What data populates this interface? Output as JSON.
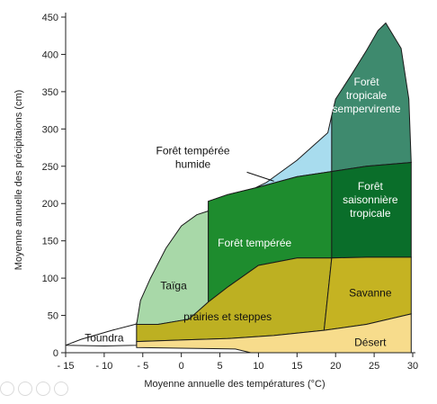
{
  "chart_data": {
    "type": "diagram",
    "title": "",
    "xlabel": "Moyenne annuelle des températures (°C)",
    "ylabel": "Moyenne annuelle des précipitaions (cm)",
    "xlim": [
      -15,
      30
    ],
    "ylim": [
      0,
      450
    ],
    "x_ticks": [
      "- 15",
      "- 10",
      "- 5",
      "0",
      "5",
      "10",
      "15",
      "20",
      "25",
      "30"
    ],
    "x_tick_values": [
      -15,
      -10,
      -5,
      0,
      5,
      10,
      15,
      20,
      25,
      30
    ],
    "y_ticks": [
      "0",
      "50",
      "100",
      "150",
      "200",
      "250",
      "300",
      "350",
      "400",
      "450"
    ],
    "y_tick_values": [
      0,
      50,
      100,
      150,
      200,
      250,
      300,
      350,
      400,
      450
    ],
    "regions": [
      {
        "id": "toundra",
        "color": "#ffffff",
        "text_color": "#111111",
        "label_lines": [
          "Toundra"
        ],
        "label_at": [
          -10,
          20
        ],
        "polygon": [
          [
            -15,
            10
          ],
          [
            -13,
            18
          ],
          [
            -9,
            30
          ],
          [
            -6,
            38
          ],
          [
            -3,
            48
          ],
          [
            -1,
            62
          ],
          [
            1,
            88
          ],
          [
            2,
            120
          ],
          [
            3,
            170
          ],
          [
            3.5,
            190
          ],
          [
            -5.8,
            40
          ],
          [
            -5.8,
            10
          ],
          [
            -10,
            9
          ]
        ]
      },
      {
        "id": "taiga",
        "color": "#a8d8a8",
        "text_color": "#111111",
        "label_lines": [
          "Taïga"
        ],
        "label_at": [
          -1,
          90
        ],
        "polygon": [
          [
            -5.8,
            38
          ],
          [
            -5.3,
            70
          ],
          [
            -4,
            100
          ],
          [
            -2,
            140
          ],
          [
            0,
            170
          ],
          [
            2,
            185
          ],
          [
            3.5,
            190
          ],
          [
            3.5,
            68
          ],
          [
            1,
            45
          ],
          [
            -3,
            38
          ]
        ]
      },
      {
        "id": "foret-temperee-humide",
        "color": "#a8dcee",
        "text_color": "#111111",
        "label_lines": [
          "Forêt tempérée",
          "humide"
        ],
        "label_at": [
          1.5,
          262
        ],
        "callout": [
          [
            8.5,
            242
          ],
          [
            12,
            230
          ]
        ],
        "polygon": [
          [
            3.5,
            190
          ],
          [
            7,
            208
          ],
          [
            11,
            228
          ],
          [
            15,
            258
          ],
          [
            19,
            295
          ],
          [
            19.5,
            318
          ],
          [
            19.5,
            243
          ],
          [
            15,
            236
          ],
          [
            10,
            222
          ],
          [
            6,
            212
          ],
          [
            3.5,
            203
          ]
        ]
      },
      {
        "id": "foret-temperee",
        "color": "#1e8c2e",
        "text_color": "#ffffff",
        "label_lines": [
          "Forêt tempérée"
        ],
        "label_at": [
          9.5,
          147
        ],
        "polygon": [
          [
            3.5,
            203
          ],
          [
            6,
            212
          ],
          [
            10,
            222
          ],
          [
            15,
            236
          ],
          [
            19.5,
            243
          ],
          [
            19.5,
            127
          ],
          [
            15,
            127
          ],
          [
            10,
            117
          ],
          [
            6,
            88
          ],
          [
            3.5,
            68
          ]
        ]
      },
      {
        "id": "prairies-et-steppes",
        "color": "#bdb022",
        "text_color": "#111111",
        "label_lines": [
          "prairies et steppes"
        ],
        "label_at": [
          6,
          48
        ],
        "polygon": [
          [
            -5.8,
            15
          ],
          [
            -5.8,
            38
          ],
          [
            -3,
            38
          ],
          [
            1,
            45
          ],
          [
            3.5,
            68
          ],
          [
            6,
            88
          ],
          [
            10,
            117
          ],
          [
            15,
            127
          ],
          [
            19.5,
            127
          ],
          [
            18.5,
            30
          ],
          [
            12,
            23
          ],
          [
            6,
            19
          ],
          [
            0,
            17
          ]
        ]
      },
      {
        "id": "foret-tropicale-sempervirente",
        "color": "#3e8a6e",
        "text_color": "#ffffff",
        "label_lines": [
          "Forêt",
          "tropicale",
          "sempervirente"
        ],
        "label_at": [
          24,
          345
        ],
        "polygon": [
          [
            19.5,
            318
          ],
          [
            20,
            340
          ],
          [
            22,
            372
          ],
          [
            24,
            405
          ],
          [
            25.5,
            432
          ],
          [
            26.5,
            442
          ],
          [
            28.5,
            408
          ],
          [
            29.5,
            340
          ],
          [
            29.8,
            255
          ],
          [
            24,
            250
          ],
          [
            19.5,
            243
          ]
        ]
      },
      {
        "id": "foret-saisonniere-tropicale",
        "color": "#0a6e2a",
        "text_color": "#ffffff",
        "label_lines": [
          "Forêt",
          "saisonnière",
          "tropicale"
        ],
        "label_at": [
          24.5,
          205
        ],
        "polygon": [
          [
            19.5,
            243
          ],
          [
            24,
            250
          ],
          [
            29.8,
            255
          ],
          [
            29.8,
            128
          ],
          [
            24,
            128
          ],
          [
            19.5,
            127
          ]
        ]
      },
      {
        "id": "savanne",
        "color": "#c5b322",
        "text_color": "#111111",
        "label_lines": [
          "Savanne"
        ],
        "label_at": [
          24.5,
          80
        ],
        "polygon": [
          [
            19.5,
            127
          ],
          [
            24,
            128
          ],
          [
            29.8,
            128
          ],
          [
            29.8,
            52
          ],
          [
            24,
            38
          ],
          [
            18.5,
            30
          ]
        ]
      },
      {
        "id": "desert",
        "color": "#f7dc8c",
        "text_color": "#111111",
        "label_lines": [
          "Désert"
        ],
        "label_at": [
          24.5,
          14
        ],
        "polygon": [
          [
            -5.8,
            7
          ],
          [
            -5.8,
            15
          ],
          [
            0,
            17
          ],
          [
            6,
            19
          ],
          [
            12,
            23
          ],
          [
            18.5,
            30
          ],
          [
            24,
            38
          ],
          [
            29.8,
            52
          ],
          [
            29.8,
            0
          ],
          [
            9,
            0
          ],
          [
            7,
            5
          ],
          [
            0,
            6
          ]
        ]
      }
    ]
  }
}
